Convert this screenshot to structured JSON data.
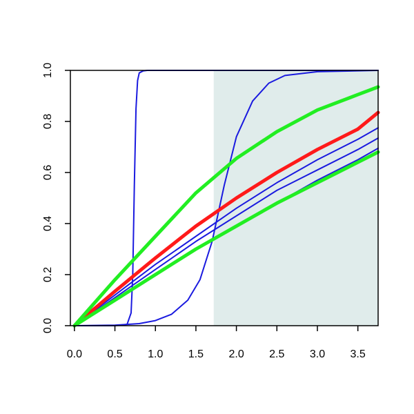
{
  "chart_data": {
    "type": "line",
    "title": "",
    "xlabel": "",
    "ylabel": "",
    "xlim": [
      -0.05,
      3.75
    ],
    "ylim": [
      0,
      1
    ],
    "x_ticks": [
      0.0,
      0.5,
      1.0,
      1.5,
      2.0,
      2.5,
      3.0,
      3.5
    ],
    "x_tick_labels": [
      "0.0",
      "0.5",
      "1.0",
      "1.5",
      "2.0",
      "2.5",
      "3.0",
      "3.5"
    ],
    "y_ticks": [
      0.0,
      0.2,
      0.4,
      0.6,
      0.8,
      1.0
    ],
    "y_tick_labels": [
      "0.0",
      "0.2",
      "0.4",
      "0.6",
      "0.8",
      "1.0"
    ],
    "shaded_region": {
      "x": [
        1.72,
        3.75
      ],
      "y": [
        0,
        1
      ],
      "color": "#e0eceb"
    },
    "grid": false,
    "legend": "none",
    "colors": {
      "blue": "#1a1adf",
      "red": "#ff1a1a",
      "green": "#22ee22",
      "axis": "#000000"
    },
    "series": [
      {
        "color": "blue",
        "width": "thin",
        "x": [
          0,
          0.5,
          0.65,
          0.7,
          0.72,
          0.74,
          0.76,
          0.78,
          0.8,
          0.85,
          0.9,
          1.0,
          1.5,
          2.0,
          3.75
        ],
        "y": [
          0,
          0,
          0.005,
          0.05,
          0.2,
          0.55,
          0.85,
          0.96,
          0.99,
          0.998,
          1,
          1,
          1,
          1,
          1
        ]
      },
      {
        "color": "blue",
        "width": "thin",
        "x": [
          0,
          0.5,
          0.8,
          1.0,
          1.2,
          1.4,
          1.55,
          1.7,
          1.85,
          2.0,
          2.2,
          2.4,
          2.6,
          3.0,
          3.75
        ],
        "y": [
          0,
          0.002,
          0.008,
          0.02,
          0.045,
          0.1,
          0.18,
          0.33,
          0.55,
          0.74,
          0.88,
          0.95,
          0.98,
          0.995,
          1.0
        ]
      },
      {
        "color": "blue",
        "width": "thin",
        "x": [
          0,
          0.5,
          1.0,
          1.5,
          2.0,
          2.5,
          3.0,
          3.5,
          3.75
        ],
        "y": [
          0,
          0.12,
          0.24,
          0.35,
          0.46,
          0.56,
          0.65,
          0.73,
          0.775
        ]
      },
      {
        "color": "blue",
        "width": "thin",
        "x": [
          0,
          0.5,
          1.0,
          1.5,
          2.0,
          2.5,
          3.0,
          3.5,
          3.75
        ],
        "y": [
          0,
          0.11,
          0.22,
          0.33,
          0.43,
          0.53,
          0.61,
          0.69,
          0.735
        ]
      },
      {
        "color": "blue",
        "width": "thin",
        "x": [
          0,
          0.5,
          1.0,
          1.5,
          2.0,
          2.5,
          3.0,
          3.5,
          3.75
        ],
        "y": [
          0,
          0.1,
          0.2,
          0.3,
          0.39,
          0.48,
          0.57,
          0.65,
          0.695
        ]
      },
      {
        "color": "red",
        "width": "thick",
        "x": [
          0,
          0.5,
          1.0,
          1.5,
          2.0,
          2.5,
          3.0,
          3.5,
          3.75
        ],
        "y": [
          0,
          0.135,
          0.265,
          0.39,
          0.5,
          0.6,
          0.69,
          0.77,
          0.835
        ]
      },
      {
        "color": "green",
        "width": "thick",
        "x": [
          0,
          0.5,
          1.0,
          1.5,
          2.0,
          2.5,
          3.0,
          3.5,
          3.75
        ],
        "y": [
          0,
          0.18,
          0.35,
          0.52,
          0.655,
          0.76,
          0.845,
          0.905,
          0.935
        ]
      },
      {
        "color": "green",
        "width": "thick",
        "x": [
          0,
          0.5,
          1.0,
          1.5,
          2.0,
          2.5,
          3.0,
          3.5,
          3.75
        ],
        "y": [
          0,
          0.1,
          0.2,
          0.3,
          0.39,
          0.48,
          0.56,
          0.64,
          0.68
        ]
      }
    ]
  }
}
